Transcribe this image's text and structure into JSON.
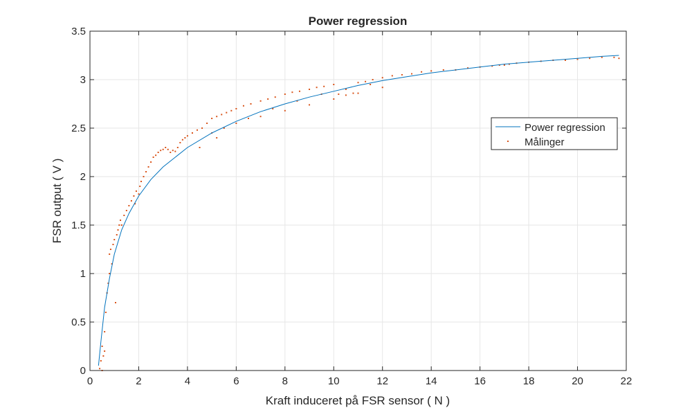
{
  "chart_data": {
    "type": "scatter",
    "title": "Power regression",
    "xlabel": "Kraft induceret på FSR sensor ( N )",
    "ylabel": "FSR output ( V )",
    "xlim": [
      0,
      22
    ],
    "ylim": [
      0,
      3.5
    ],
    "xticks": [
      0,
      2,
      4,
      6,
      8,
      10,
      12,
      14,
      16,
      18,
      20,
      22
    ],
    "yticks": [
      0,
      0.5,
      1,
      1.5,
      2,
      2.5,
      3,
      3.5
    ],
    "xtick_labels": [
      "0",
      "2",
      "4",
      "6",
      "8",
      "10",
      "12",
      "14",
      "16",
      "18",
      "20",
      "22"
    ],
    "ytick_labels": [
      "0",
      "0.5",
      "1",
      "1.5",
      "2",
      "2.5",
      "3",
      "3.5"
    ],
    "grid": true,
    "legend_position": "right",
    "series": [
      {
        "name": "Power regression",
        "kind": "line",
        "color": "#0072BD",
        "x": [
          0.35,
          0.45,
          0.6,
          0.8,
          1.0,
          1.3,
          1.6,
          2.0,
          2.5,
          3.0,
          3.5,
          4.0,
          5.0,
          6.0,
          7.0,
          8.0,
          9.0,
          10.0,
          11.0,
          12.0,
          13.0,
          14.0,
          15.0,
          16.0,
          17.0,
          18.0,
          19.0,
          20.0,
          21.0,
          21.7
        ],
        "y": [
          0.05,
          0.3,
          0.65,
          0.95,
          1.2,
          1.45,
          1.62,
          1.8,
          1.97,
          2.1,
          2.2,
          2.3,
          2.45,
          2.57,
          2.67,
          2.75,
          2.82,
          2.88,
          2.94,
          2.99,
          3.03,
          3.07,
          3.1,
          3.13,
          3.16,
          3.18,
          3.2,
          3.22,
          3.24,
          3.25
        ]
      },
      {
        "name": "Målinger",
        "kind": "scatter",
        "color": "#D95319",
        "x": [
          0.4,
          0.45,
          0.5,
          0.5,
          0.55,
          0.6,
          0.6,
          0.65,
          0.7,
          0.75,
          0.8,
          0.8,
          0.85,
          0.9,
          0.95,
          1.0,
          1.05,
          1.1,
          1.15,
          1.2,
          1.25,
          1.3,
          1.4,
          1.5,
          1.6,
          1.7,
          1.8,
          1.85,
          1.9,
          2.0,
          2.05,
          2.1,
          2.2,
          2.3,
          2.4,
          2.5,
          2.6,
          2.7,
          2.8,
          2.9,
          3.0,
          3.1,
          3.2,
          3.3,
          3.4,
          3.5,
          3.6,
          3.7,
          3.8,
          3.9,
          4.0,
          4.2,
          4.4,
          4.6,
          4.8,
          5.0,
          5.2,
          5.4,
          5.6,
          5.8,
          6.0,
          6.3,
          6.6,
          7.0,
          7.3,
          7.6,
          8.0,
          8.3,
          8.6,
          9.0,
          9.3,
          9.6,
          10.0,
          10.2,
          10.5,
          10.8,
          11.0,
          11.3,
          11.6,
          12.0,
          12.4,
          12.8,
          13.2,
          13.6,
          14.0,
          14.5,
          15.0,
          15.5,
          16.0,
          16.5,
          16.8,
          17.0,
          17.2,
          17.5,
          18.0,
          18.5,
          19.0,
          19.5,
          20.0,
          20.5,
          21.0,
          21.5,
          21.7,
          5.0,
          5.5,
          6.0,
          7.0,
          8.0,
          9.0,
          10.0,
          11.0,
          12.0,
          4.5,
          5.2,
          6.5,
          7.5,
          8.5,
          9.5,
          10.5,
          11.5
        ],
        "y": [
          0.02,
          0.1,
          0.25,
          0.0,
          0.15,
          0.2,
          0.4,
          0.6,
          0.8,
          0.9,
          1.0,
          1.2,
          1.25,
          1.1,
          1.3,
          1.35,
          0.7,
          1.4,
          1.45,
          1.5,
          1.55,
          1.5,
          1.6,
          1.65,
          1.7,
          1.75,
          1.8,
          1.72,
          1.85,
          1.82,
          1.9,
          1.95,
          2.0,
          2.05,
          2.1,
          2.15,
          2.2,
          2.22,
          2.25,
          2.27,
          2.28,
          2.3,
          2.28,
          2.25,
          2.27,
          2.26,
          2.3,
          2.35,
          2.38,
          2.4,
          2.42,
          2.45,
          2.48,
          2.5,
          2.55,
          2.6,
          2.62,
          2.64,
          2.66,
          2.68,
          2.7,
          2.73,
          2.75,
          2.78,
          2.8,
          2.82,
          2.85,
          2.87,
          2.88,
          2.9,
          2.92,
          2.93,
          2.95,
          2.85,
          2.84,
          2.86,
          2.97,
          2.98,
          3.0,
          3.02,
          3.04,
          3.05,
          3.06,
          3.08,
          3.09,
          3.1,
          3.1,
          3.12,
          3.13,
          3.14,
          3.15,
          3.15,
          3.16,
          3.17,
          3.18,
          3.19,
          3.2,
          3.2,
          3.21,
          3.22,
          3.23,
          3.23,
          3.22,
          2.45,
          2.5,
          2.55,
          2.62,
          2.68,
          2.74,
          2.8,
          2.86,
          2.92,
          2.3,
          2.4,
          2.6,
          2.7,
          2.78,
          2.85,
          2.9,
          2.95
        ]
      }
    ]
  }
}
